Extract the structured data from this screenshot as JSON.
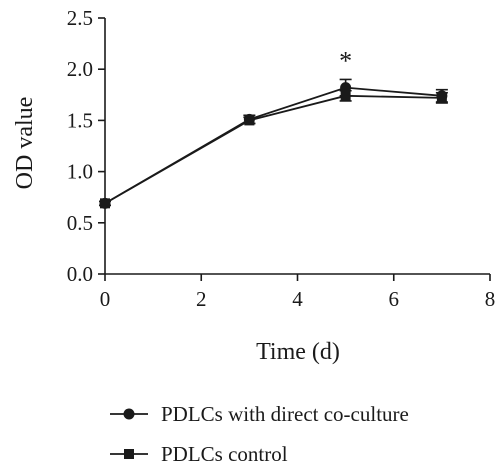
{
  "chart_data": {
    "type": "line",
    "xlabel": "Time (d)",
    "ylabel": "OD value",
    "xlim": [
      0,
      8
    ],
    "ylim": [
      0,
      2.5
    ],
    "x_ticks": [
      "0",
      "2",
      "4",
      "6",
      "8"
    ],
    "y_ticks": [
      "0.0",
      "0.5",
      "1.0",
      "1.5",
      "2.0",
      "2.5"
    ],
    "x": [
      0,
      3,
      5,
      7
    ],
    "series": [
      {
        "name": "PDLCs with direct co-culture",
        "marker": "circle",
        "values": [
          0.69,
          1.51,
          1.82,
          1.74
        ],
        "errors": [
          0.02,
          0.04,
          0.08,
          0.06
        ]
      },
      {
        "name": "PDLCs control",
        "marker": "square",
        "values": [
          0.69,
          1.5,
          1.74,
          1.72
        ],
        "errors": [
          0.02,
          0.03,
          0.05,
          0.05
        ]
      }
    ],
    "annotations": [
      {
        "text": "*",
        "x": 5
      }
    ],
    "legend_position": "bottom",
    "grid": false,
    "colors": {
      "line": "#1a1a1a",
      "background": "#ffffff"
    }
  }
}
